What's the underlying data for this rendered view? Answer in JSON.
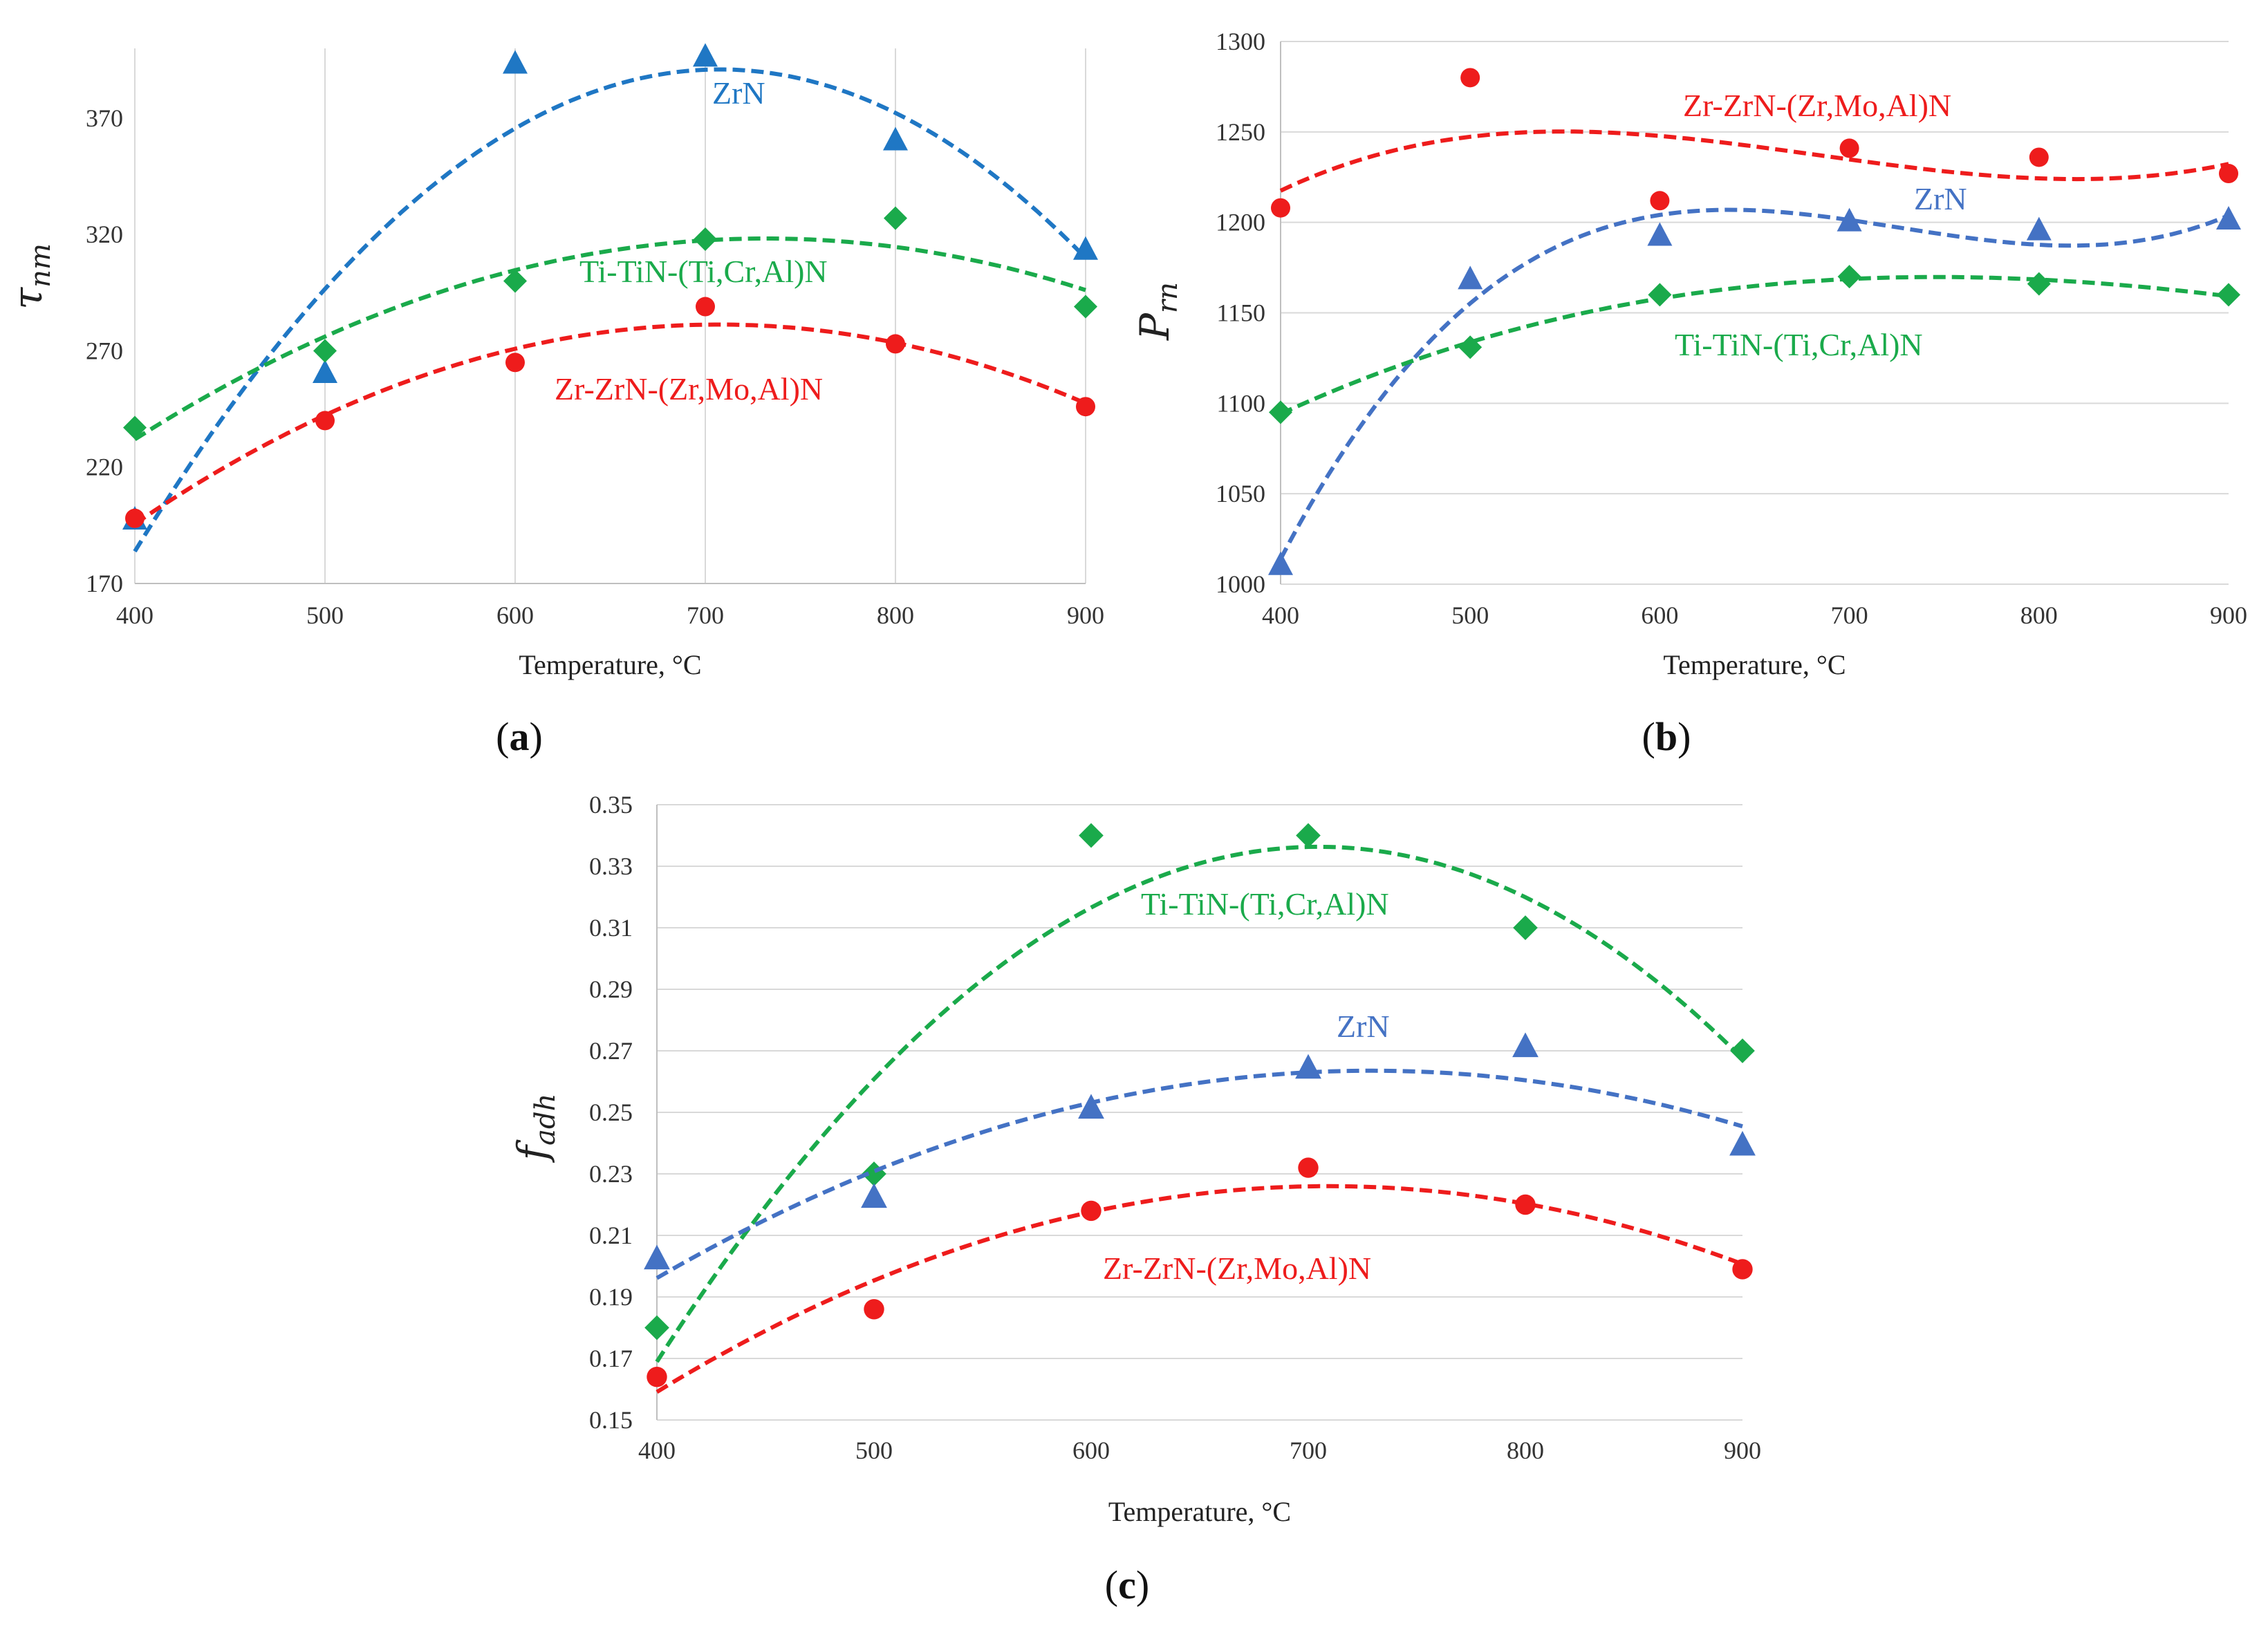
{
  "figure": {
    "panel_labels": {
      "a_open": "(",
      "a": "a",
      "a_close": ")",
      "b_open": "(",
      "b": "b",
      "b_close": ")",
      "c_open": "(",
      "c": "c",
      "c_close": ")"
    }
  },
  "colors": {
    "ZrN": "#1f77c4",
    "ZrN_b": "#4472c4",
    "TiTiN": "#1aaa4b",
    "ZrZrN": "#ee1c1c"
  },
  "chart_data": [
    {
      "id": "a",
      "type": "scatter",
      "title": "",
      "xlabel": "Temperature, °C",
      "ylabel_main": "τ",
      "ylabel_sub": "nm",
      "xlim": [
        400,
        900
      ],
      "ylim": [
        170,
        400
      ],
      "xticks": [
        "400",
        "500",
        "600",
        "700",
        "800",
        "900"
      ],
      "yticks": [
        "170",
        "220",
        "270",
        "320",
        "370"
      ],
      "grid": "vertical",
      "x": [
        400,
        500,
        600,
        700,
        800,
        900
      ],
      "series": [
        {
          "name": "ZrN",
          "label": "ZrN",
          "marker": "triangle",
          "color": "#1f77c4",
          "values": [
            197,
            260,
            393,
            396,
            360,
            313
          ],
          "trend_degree": 2
        },
        {
          "name": "Ti-TiN-(Ti,Cr,Al)N",
          "label": "Ti-TiN-(Ti,Cr,Al)N",
          "marker": "diamond",
          "color": "#1aaa4b",
          "values": [
            237,
            270,
            300,
            318,
            327,
            289
          ],
          "trend_degree": 2
        },
        {
          "name": "Zr-ZrN-(Zr,Mo,Al)N",
          "label": "Zr-ZrN-(Zr,Mo,Al)N",
          "marker": "circle",
          "color": "#ee1c1c",
          "values": [
            198,
            240,
            265,
            289,
            273,
            246
          ],
          "trend_degree": 2
        }
      ]
    },
    {
      "id": "b",
      "type": "scatter",
      "title": "",
      "xlabel": "Temperature, °C",
      "ylabel_main": "P",
      "ylabel_sub": "rn",
      "xlim": [
        400,
        900
      ],
      "ylim": [
        1000,
        1300
      ],
      "xticks": [
        "400",
        "500",
        "600",
        "700",
        "800",
        "900"
      ],
      "yticks": [
        "1000",
        "1050",
        "1100",
        "1150",
        "1200",
        "1250",
        "1300"
      ],
      "grid": "horizontal",
      "x": [
        400,
        500,
        600,
        700,
        800,
        900
      ],
      "series": [
        {
          "name": "Zr-ZrN-(Zr,Mo,Al)N",
          "label": "Zr-ZrN-(Zr,Mo,Al)N",
          "marker": "circle",
          "color": "#ee1c1c",
          "values": [
            1208,
            1280,
            1212,
            1241,
            1236,
            1227
          ],
          "trend_degree": 3
        },
        {
          "name": "ZrN",
          "label": "ZrN",
          "marker": "triangle",
          "color": "#4472c4",
          "values": [
            1010,
            1168,
            1192,
            1200,
            1195,
            1201
          ],
          "trend_degree": 3
        },
        {
          "name": "Ti-TiN-(Ti,Cr,Al)N",
          "label": "Ti-TiN-(Ti,Cr,Al)N",
          "marker": "diamond",
          "color": "#1aaa4b",
          "values": [
            1095,
            1131,
            1160,
            1170,
            1166,
            1160
          ],
          "trend_degree": 3
        }
      ]
    },
    {
      "id": "c",
      "type": "scatter",
      "title": "",
      "xlabel": "Temperature, °C",
      "ylabel_main": "f",
      "ylabel_sub": "adh",
      "xlim": [
        400,
        900
      ],
      "ylim": [
        0.15,
        0.35
      ],
      "xticks": [
        "400",
        "500",
        "600",
        "700",
        "800",
        "900"
      ],
      "yticks": [
        "0.15",
        "0.17",
        "0.19",
        "0.21",
        "0.23",
        "0.25",
        "0.27",
        "0.29",
        "0.31",
        "0.33",
        "0.35"
      ],
      "grid": "horizontal",
      "x": [
        400,
        500,
        600,
        700,
        800,
        900
      ],
      "series": [
        {
          "name": "Ti-TiN-(Ti,Cr,Al)N",
          "label": "Ti-TiN-(Ti,Cr,Al)N",
          "marker": "diamond",
          "color": "#1aaa4b",
          "values": [
            0.18,
            0.23,
            0.34,
            0.34,
            0.31,
            0.27
          ],
          "trend_degree": 2
        },
        {
          "name": "ZrN",
          "label": "ZrN",
          "marker": "triangle",
          "color": "#4472c4",
          "values": [
            0.202,
            0.222,
            0.251,
            0.264,
            0.271,
            0.239
          ],
          "trend_degree": 2
        },
        {
          "name": "Zr-ZrN-(Zr,Mo,Al)N",
          "label": "Zr-ZrN-(Zr,Mo,Al)N",
          "marker": "circle",
          "color": "#ee1c1c",
          "values": [
            0.164,
            0.186,
            0.218,
            0.232,
            0.22,
            0.199
          ],
          "trend_degree": 2
        }
      ]
    }
  ]
}
